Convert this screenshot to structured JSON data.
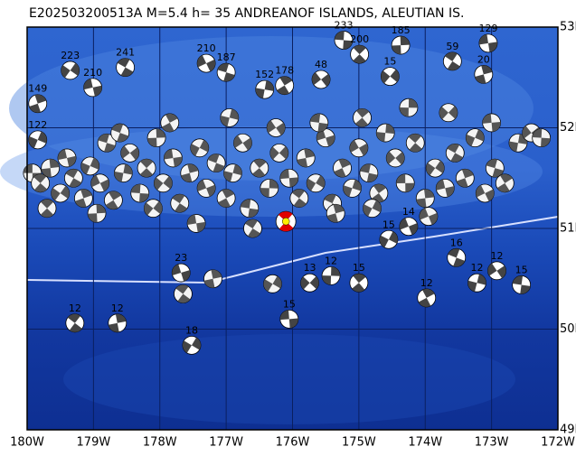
{
  "map": {
    "title": "E202503200513A  M=5.4  h= 35  ANDREANOF ISLANDS, ALEUTIAN IS.",
    "lon_range": [
      -180,
      -172
    ],
    "lat_range": [
      49,
      53
    ],
    "lon_ticks": [
      {
        "value": -180,
        "label": "180W"
      },
      {
        "value": -179,
        "label": "179W"
      },
      {
        "value": -178,
        "label": "178W"
      },
      {
        "value": -177,
        "label": "177W"
      },
      {
        "value": -176,
        "label": "176W"
      },
      {
        "value": -175,
        "label": "175W"
      },
      {
        "value": -174,
        "label": "174W"
      },
      {
        "value": -173,
        "label": "173W"
      },
      {
        "value": -172,
        "label": "172W"
      }
    ],
    "lat_ticks": [
      {
        "value": 53,
        "label": "53N"
      },
      {
        "value": 52,
        "label": "52N"
      },
      {
        "value": 51,
        "label": "51N"
      },
      {
        "value": 50,
        "label": "50N"
      },
      {
        "value": 49,
        "label": "49N"
      }
    ],
    "mainshock": {
      "lon": -176.1,
      "lat": 51.07
    },
    "events": [
      {
        "lon": -179.35,
        "lat": 52.57,
        "depth": 223
      },
      {
        "lon": -179.01,
        "lat": 52.4,
        "depth": 210
      },
      {
        "lon": -178.52,
        "lat": 52.6,
        "depth": 241
      },
      {
        "lon": -179.84,
        "lat": 52.24,
        "depth": 149
      },
      {
        "lon": -179.84,
        "lat": 51.88,
        "depth": 122
      },
      {
        "lon": -177.3,
        "lat": 52.64,
        "depth": 210
      },
      {
        "lon": -177.0,
        "lat": 52.55,
        "depth": 187
      },
      {
        "lon": -176.12,
        "lat": 52.42,
        "depth": 178
      },
      {
        "lon": -176.42,
        "lat": 52.38,
        "depth": 152
      },
      {
        "lon": -175.57,
        "lat": 52.48,
        "depth": 48
      },
      {
        "lon": -175.23,
        "lat": 52.87,
        "depth": 233
      },
      {
        "lon": -174.99,
        "lat": 52.73,
        "depth": 200
      },
      {
        "lon": -174.37,
        "lat": 52.82,
        "depth": 185
      },
      {
        "lon": -174.53,
        "lat": 52.51,
        "depth": 15
      },
      {
        "lon": -173.05,
        "lat": 52.84,
        "depth": 129
      },
      {
        "lon": -173.59,
        "lat": 52.66,
        "depth": 59
      },
      {
        "lon": -173.12,
        "lat": 52.53,
        "depth": 20
      },
      {
        "lon": -174.55,
        "lat": 50.89,
        "depth": 15
      },
      {
        "lon": -174.25,
        "lat": 51.02,
        "depth": 14
      },
      {
        "lon": -173.53,
        "lat": 50.71,
        "depth": 16
      },
      {
        "lon": -173.98,
        "lat": 50.31,
        "depth": 12
      },
      {
        "lon": -173.22,
        "lat": 50.46,
        "depth": 12
      },
      {
        "lon": -172.92,
        "lat": 50.58,
        "depth": 12
      },
      {
        "lon": -172.55,
        "lat": 50.44,
        "depth": 15
      },
      {
        "lon": -175.0,
        "lat": 50.46,
        "depth": 15
      },
      {
        "lon": -175.42,
        "lat": 50.53,
        "depth": 12
      },
      {
        "lon": -175.74,
        "lat": 50.46,
        "depth": 13
      },
      {
        "lon": -176.05,
        "lat": 50.1,
        "depth": 15
      },
      {
        "lon": -179.28,
        "lat": 50.06,
        "depth": 12
      },
      {
        "lon": -178.64,
        "lat": 50.06,
        "depth": 12
      },
      {
        "lon": -177.52,
        "lat": 49.84,
        "depth": 18
      },
      {
        "lon": -177.68,
        "lat": 50.56,
        "depth": 23
      }
    ],
    "cluster": [
      [
        -179.92,
        51.55
      ],
      [
        -179.8,
        51.45
      ],
      [
        -179.65,
        51.6
      ],
      [
        -179.5,
        51.35
      ],
      [
        -179.4,
        51.7
      ],
      [
        -179.3,
        51.5
      ],
      [
        -179.15,
        51.3
      ],
      [
        -179.05,
        51.62
      ],
      [
        -178.9,
        51.45
      ],
      [
        -178.8,
        51.85
      ],
      [
        -178.7,
        51.28
      ],
      [
        -178.55,
        51.55
      ],
      [
        -178.45,
        51.75
      ],
      [
        -178.3,
        51.35
      ],
      [
        -178.2,
        51.6
      ],
      [
        -178.05,
        51.9
      ],
      [
        -177.95,
        51.45
      ],
      [
        -177.8,
        51.7
      ],
      [
        -177.7,
        51.25
      ],
      [
        -177.55,
        51.55
      ],
      [
        -177.4,
        51.8
      ],
      [
        -177.3,
        51.4
      ],
      [
        -177.15,
        51.65
      ],
      [
        -177.0,
        51.3
      ],
      [
        -176.9,
        51.55
      ],
      [
        -176.75,
        51.85
      ],
      [
        -176.65,
        51.2
      ],
      [
        -176.5,
        51.6
      ],
      [
        -176.35,
        51.4
      ],
      [
        -176.2,
        51.75
      ],
      [
        -176.05,
        51.5
      ],
      [
        -175.9,
        51.3
      ],
      [
        -175.8,
        51.7
      ],
      [
        -175.65,
        51.45
      ],
      [
        -175.5,
        51.9
      ],
      [
        -175.4,
        51.25
      ],
      [
        -175.25,
        51.6
      ],
      [
        -175.1,
        51.4
      ],
      [
        -175.0,
        51.8
      ],
      [
        -174.85,
        51.55
      ],
      [
        -174.7,
        51.35
      ],
      [
        -174.6,
        51.95
      ],
      [
        -174.45,
        51.7
      ],
      [
        -174.3,
        51.45
      ],
      [
        -174.15,
        51.85
      ],
      [
        -174.0,
        51.3
      ],
      [
        -173.85,
        51.6
      ],
      [
        -173.7,
        51.4
      ],
      [
        -173.55,
        51.75
      ],
      [
        -173.4,
        51.5
      ],
      [
        -173.25,
        51.9
      ],
      [
        -173.1,
        51.35
      ],
      [
        -172.95,
        51.6
      ],
      [
        -172.8,
        51.45
      ],
      [
        -172.6,
        51.85
      ],
      [
        -172.4,
        51.95
      ],
      [
        -172.25,
        51.9
      ],
      [
        -179.7,
        51.2
      ],
      [
        -178.95,
        51.15
      ],
      [
        -178.1,
        51.2
      ],
      [
        -177.45,
        51.05
      ],
      [
        -176.6,
        51.0
      ],
      [
        -175.35,
        51.15
      ],
      [
        -174.8,
        51.2
      ],
      [
        -173.95,
        51.12
      ],
      [
        -178.6,
        51.95
      ],
      [
        -177.85,
        52.05
      ],
      [
        -176.95,
        52.1
      ],
      [
        -176.25,
        52.0
      ],
      [
        -175.6,
        52.05
      ],
      [
        -174.95,
        52.1
      ],
      [
        -174.25,
        52.2
      ],
      [
        -173.65,
        52.15
      ],
      [
        -173.0,
        52.05
      ],
      [
        -177.65,
        50.35
      ],
      [
        -177.2,
        50.5
      ],
      [
        -176.3,
        50.45
      ]
    ]
  }
}
